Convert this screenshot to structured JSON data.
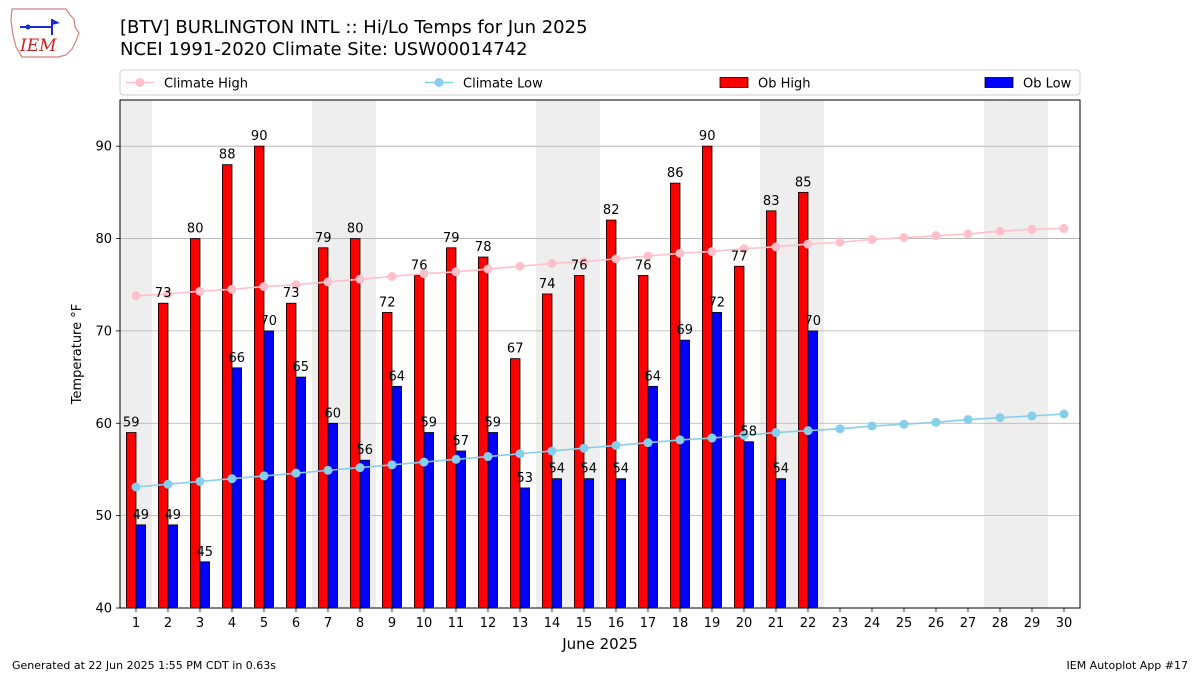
{
  "header": {
    "title_line1": "[BTV] BURLINGTON INTL :: Hi/Lo Temps for Jun 2025",
    "title_line2": "NCEI 1991-2020 Climate Site: USW00014742",
    "logo_text": "IEM"
  },
  "footer": {
    "generated": "Generated at 22 Jun 2025 1:55 PM CDT in 0.63s",
    "app": "IEM Autoplot App #17"
  },
  "colors": {
    "ob_high": "#ff0000",
    "ob_low": "#0000ff",
    "climate_high": "#ffc0cb",
    "climate_low": "#87ceeb",
    "weekend_shade": "#eeeeee"
  },
  "chart_data": {
    "type": "bar",
    "xlabel": "June 2025",
    "ylabel": "Temperature °F",
    "ylim": [
      40,
      95
    ],
    "yticks": [
      40,
      50,
      60,
      70,
      80,
      90
    ],
    "xlim": [
      0.5,
      30.5
    ],
    "grid": "y",
    "legend_position": "top",
    "weekend_days": [
      1,
      7,
      8,
      14,
      15,
      21,
      22,
      28,
      29
    ],
    "days": [
      1,
      2,
      3,
      4,
      5,
      6,
      7,
      8,
      9,
      10,
      11,
      12,
      13,
      14,
      15,
      16,
      17,
      18,
      19,
      20,
      21,
      22,
      23,
      24,
      25,
      26,
      27,
      28,
      29,
      30
    ],
    "series": [
      {
        "name": "Climate High",
        "type": "line",
        "values": [
          73.8,
          74.0,
          74.3,
          74.5,
          74.8,
          75.0,
          75.3,
          75.6,
          75.9,
          76.2,
          76.4,
          76.7,
          77.0,
          77.3,
          77.5,
          77.8,
          78.1,
          78.4,
          78.6,
          78.9,
          79.1,
          79.4,
          79.6,
          79.9,
          80.1,
          80.3,
          80.5,
          80.8,
          81.0,
          81.1
        ]
      },
      {
        "name": "Climate Low",
        "type": "line",
        "values": [
          53.1,
          53.4,
          53.7,
          54.0,
          54.3,
          54.6,
          54.9,
          55.2,
          55.5,
          55.8,
          56.1,
          56.4,
          56.7,
          57.0,
          57.3,
          57.6,
          57.9,
          58.2,
          58.4,
          58.7,
          59.0,
          59.2,
          59.4,
          59.7,
          59.9,
          60.1,
          60.4,
          60.6,
          60.8,
          61.0
        ]
      },
      {
        "name": "Ob High",
        "type": "bar",
        "values": [
          59,
          73,
          80,
          88,
          90,
          73,
          79,
          80,
          72,
          76,
          79,
          78,
          67,
          74,
          76,
          82,
          76,
          86,
          90,
          77,
          83,
          85
        ]
      },
      {
        "name": "Ob Low",
        "type": "bar",
        "values": [
          49,
          49,
          45,
          66,
          70,
          65,
          60,
          56,
          64,
          59,
          57,
          59,
          53,
          54,
          54,
          54,
          64,
          69,
          72,
          58,
          54,
          70
        ]
      }
    ]
  }
}
